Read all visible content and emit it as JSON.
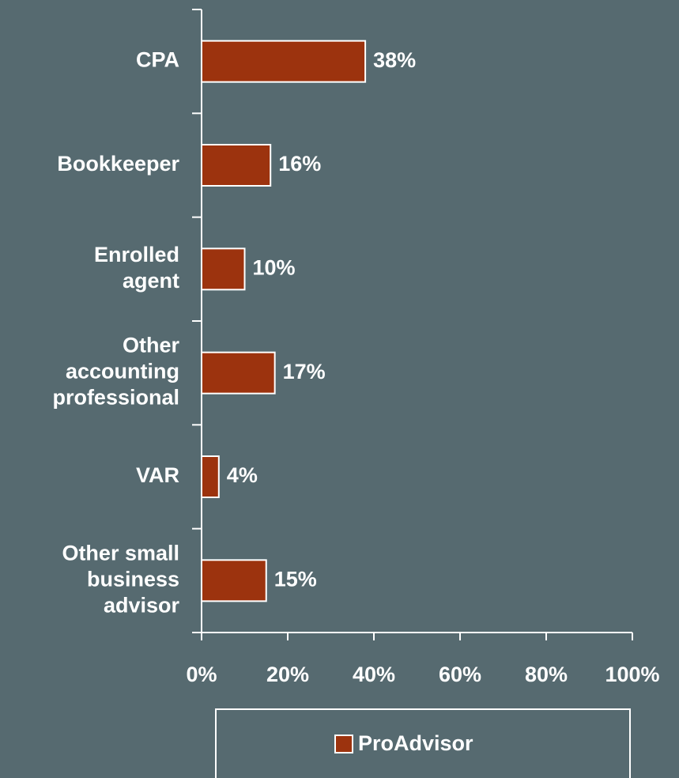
{
  "chart_data": {
    "type": "hbar",
    "categories": [
      "CPA",
      "Bookkeeper",
      "Enrolled agent",
      "Other accounting professional",
      "VAR",
      "Other small business advisor"
    ],
    "series": [
      {
        "name": "ProAdvisor",
        "color": "#9c330e",
        "values": [
          38,
          16,
          10,
          17,
          4,
          15
        ],
        "value_labels": [
          "38%",
          "16%",
          "10%",
          "17%",
          "4%",
          "15%"
        ]
      }
    ],
    "xlim": [
      0,
      100
    ],
    "xticks": [
      {
        "value": 0,
        "label": "0%"
      },
      {
        "value": 20,
        "label": "20%"
      },
      {
        "value": 40,
        "label": "40%"
      },
      {
        "value": 60,
        "label": "60%"
      },
      {
        "value": 80,
        "label": "80%"
      },
      {
        "value": 100,
        "label": "100%"
      }
    ],
    "legend": "bottom"
  }
}
